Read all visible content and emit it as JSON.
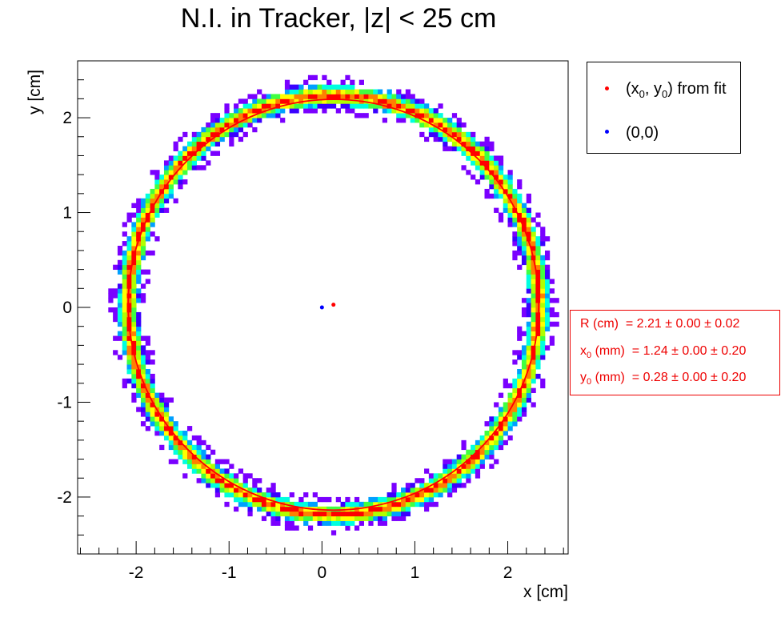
{
  "chart_data": {
    "type": "heatmap",
    "title": "N.I. in Tracker, |z| < 25 cm",
    "xlabel": "x [cm]",
    "ylabel": "y [cm]",
    "xlim": [
      -2.63,
      2.65
    ],
    "ylim": [
      -2.6,
      2.6
    ],
    "xticks": [
      -2,
      -1,
      0,
      1,
      2
    ],
    "yticks": [
      -2,
      -1,
      0,
      1,
      2
    ],
    "ring": {
      "center_x_cm": 0.124,
      "center_y_cm": 0.028,
      "radius_cm": 2.21,
      "fit_color": "#ff0000"
    },
    "colormap": [
      "#7a00ff",
      "#3a00ff",
      "#00a0ff",
      "#00ffe0",
      "#40ff40",
      "#b0ff00",
      "#ffff00",
      "#ff8000",
      "#ff0000"
    ],
    "points": [
      {
        "name": "(x0, y0) from fit",
        "x": 0.124,
        "y": 0.028,
        "color": "#ff0000"
      },
      {
        "name": "(0,0)",
        "x": 0,
        "y": 0,
        "color": "#0000ff"
      }
    ],
    "legend": {
      "position": "top-right",
      "entries": [
        {
          "label_main": "(x",
          "sub1": "0",
          "mid": ", y",
          "sub2": "0",
          "label_end": ") from fit",
          "color": "#ff0000"
        },
        {
          "label_main": "(0,0)",
          "color": "#0000ff"
        }
      ]
    },
    "stats": [
      {
        "prefix": "R (cm)",
        "sub": "",
        "suffix": "",
        "value": "= 2.21 ± 0.00 ± 0.02"
      },
      {
        "prefix": "x",
        "sub": "0",
        "suffix": " (mm)",
        "value": "= 1.24 ± 0.00 ± 0.20"
      },
      {
        "prefix": "y",
        "sub": "0",
        "suffix": " (mm)",
        "value": "= 0.28 ± 0.00 ± 0.20"
      }
    ]
  }
}
